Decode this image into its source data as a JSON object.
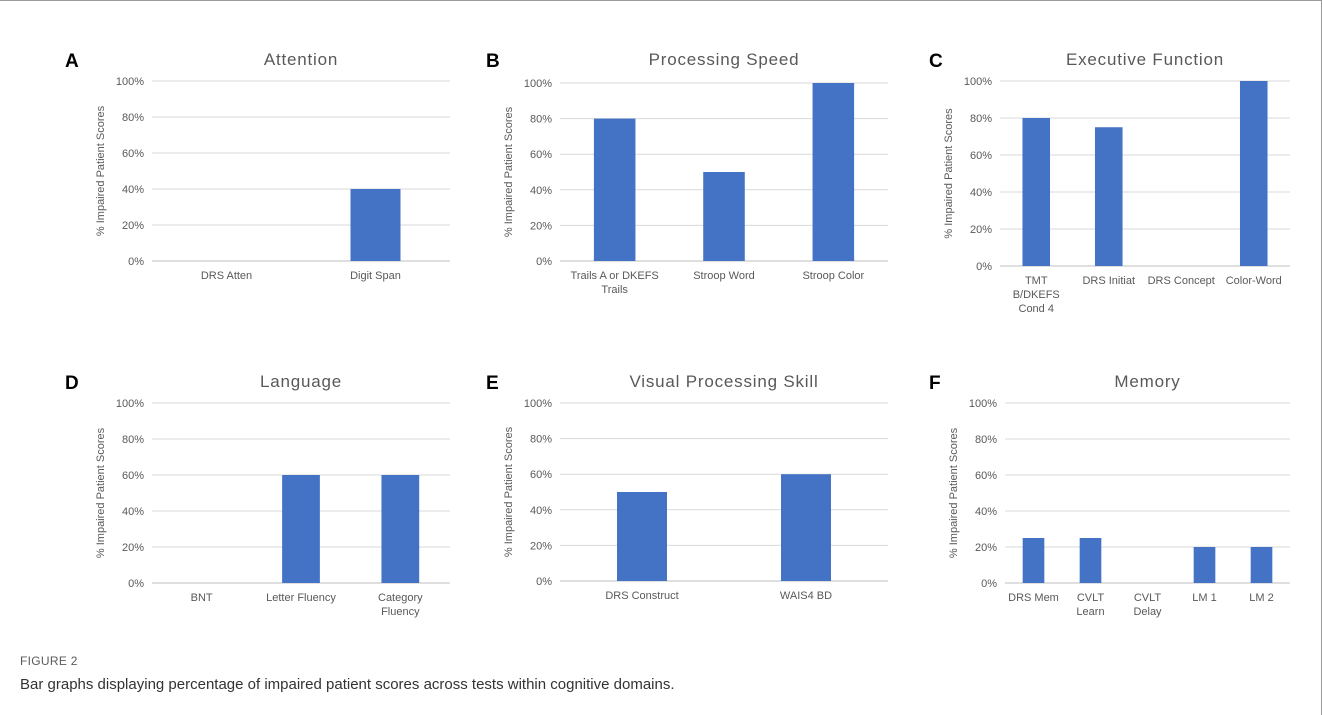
{
  "figure": {
    "label": "FIGURE 2",
    "caption": "Bar graphs displaying percentage of impaired patient scores across tests within cognitive domains."
  },
  "colors": {
    "bar": "#4472C4",
    "grid": "#d9d9d9",
    "text": "#595959"
  },
  "chart_data": [
    {
      "panel": "A",
      "type": "bar",
      "title": "Attention",
      "ylabel": "% Impaired Patient Scores",
      "ylim": [
        0,
        100
      ],
      "yticks": [
        "0%",
        "20%",
        "40%",
        "60%",
        "80%",
        "100%"
      ],
      "categories": [
        [
          "DRS Atten"
        ],
        [
          "Digit Span"
        ]
      ],
      "values": [
        0,
        40
      ]
    },
    {
      "panel": "B",
      "type": "bar",
      "title": "Processing Speed",
      "ylabel": "% Impaired Patient Scores",
      "ylim": [
        0,
        100
      ],
      "yticks": [
        "0%",
        "20%",
        "40%",
        "60%",
        "80%",
        "100%"
      ],
      "categories": [
        [
          "Trails A or DKEFS",
          "Trails"
        ],
        [
          "Stroop Word"
        ],
        [
          "Stroop Color"
        ]
      ],
      "values": [
        80,
        50,
        100
      ]
    },
    {
      "panel": "C",
      "type": "bar",
      "title": "Executive Function",
      "ylabel": "% Impaired Patient Scores",
      "ylim": [
        0,
        100
      ],
      "yticks": [
        "0%",
        "20%",
        "40%",
        "60%",
        "80%",
        "100%"
      ],
      "categories": [
        [
          "TMT",
          "B/DKEFS",
          "Cond 4"
        ],
        [
          "DRS Initiat"
        ],
        [
          "DRS Concept"
        ],
        [
          "Color-Word"
        ]
      ],
      "values": [
        80,
        75,
        0,
        100
      ]
    },
    {
      "panel": "D",
      "type": "bar",
      "title": "Language",
      "ylabel": "% Impaired Patient Scores",
      "ylim": [
        0,
        100
      ],
      "yticks": [
        "0%",
        "20%",
        "40%",
        "60%",
        "80%",
        "100%"
      ],
      "categories": [
        [
          "BNT"
        ],
        [
          "Letter Fluency"
        ],
        [
          "Category",
          "Fluency"
        ]
      ],
      "values": [
        0,
        60,
        60
      ]
    },
    {
      "panel": "E",
      "type": "bar",
      "title": "Visual Processing Skill",
      "ylabel": "% Impaired Patient Scores",
      "ylim": [
        0,
        100
      ],
      "yticks": [
        "0%",
        "20%",
        "40%",
        "60%",
        "80%",
        "100%"
      ],
      "categories": [
        [
          "DRS Construct"
        ],
        [
          "WAIS4 BD"
        ]
      ],
      "values": [
        50,
        60
      ]
    },
    {
      "panel": "F",
      "type": "bar",
      "title": "Memory",
      "ylabel": "% Impaired Patient Scores",
      "ylim": [
        0,
        100
      ],
      "yticks": [
        "0%",
        "20%",
        "40%",
        "60%",
        "80%",
        "100%"
      ],
      "categories": [
        [
          "DRS Mem"
        ],
        [
          "CVLT",
          "Learn"
        ],
        [
          "CVLT",
          "Delay"
        ],
        [
          "LM 1"
        ],
        [
          "LM 2"
        ]
      ],
      "values": [
        25,
        25,
        0,
        20,
        20
      ]
    }
  ]
}
